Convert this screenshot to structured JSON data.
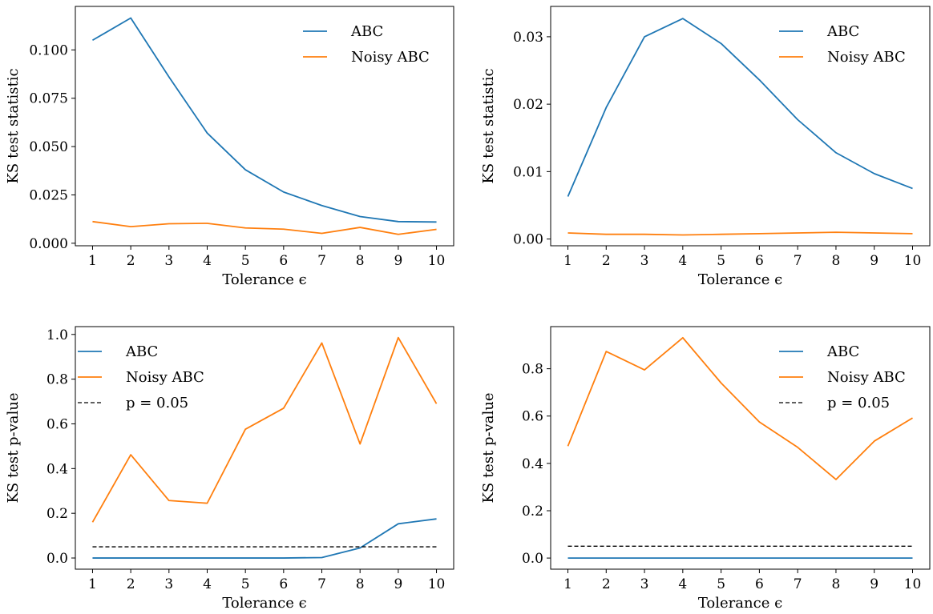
{
  "colors": {
    "ABC": "#1f77b4",
    "Noisy ABC": "#ff7f0e",
    "threshold": "#000000"
  },
  "chart_data": [
    {
      "type": "line",
      "panel": "top-left",
      "xlabel": "Tolerance ϵ",
      "ylabel": "KS test statistic",
      "x": [
        1,
        2,
        3,
        4,
        5,
        6,
        7,
        8,
        9,
        10
      ],
      "xticks": [
        "1",
        "2",
        "3",
        "4",
        "5",
        "6",
        "7",
        "8",
        "9",
        "10"
      ],
      "xlim": [
        0.55,
        10.45
      ],
      "ylim": [
        -0.0013,
        0.1225
      ],
      "yticks": [
        "0.000",
        "0.025",
        "0.050",
        "0.075",
        "0.100"
      ],
      "ytick_values": [
        0,
        0.025,
        0.05,
        0.075,
        0.1
      ],
      "grid": false,
      "legend": "top-right",
      "series": [
        {
          "name": "ABC",
          "color_key": "ABC",
          "values": [
            0.105,
            0.1165,
            0.086,
            0.057,
            0.038,
            0.0265,
            0.0195,
            0.0138,
            0.0112,
            0.011
          ]
        },
        {
          "name": "Noisy ABC",
          "color_key": "Noisy ABC",
          "values": [
            0.0112,
            0.0086,
            0.0101,
            0.0103,
            0.0079,
            0.0073,
            0.0051,
            0.0082,
            0.0046,
            0.0072
          ]
        }
      ]
    },
    {
      "type": "line",
      "panel": "top-right",
      "xlabel": "Tolerance ϵ",
      "ylabel": "KS test statistic",
      "x": [
        1,
        2,
        3,
        4,
        5,
        6,
        7,
        8,
        9,
        10
      ],
      "xticks": [
        "1",
        "2",
        "3",
        "4",
        "5",
        "6",
        "7",
        "8",
        "9",
        "10"
      ],
      "xlim": [
        0.55,
        10.45
      ],
      "ylim": [
        -0.001,
        0.0345
      ],
      "yticks": [
        "0.00",
        "0.01",
        "0.02",
        "0.03"
      ],
      "ytick_values": [
        0,
        0.01,
        0.02,
        0.03
      ],
      "grid": false,
      "legend": "top-right",
      "series": [
        {
          "name": "ABC",
          "color_key": "ABC",
          "values": [
            0.0063,
            0.0195,
            0.03,
            0.0327,
            0.029,
            0.0236,
            0.0177,
            0.0128,
            0.0097,
            0.0075
          ]
        },
        {
          "name": "Noisy ABC",
          "color_key": "Noisy ABC",
          "values": [
            0.0009,
            0.0007,
            0.0007,
            0.0006,
            0.0007,
            0.0008,
            0.0009,
            0.001,
            0.0009,
            0.0008
          ]
        }
      ]
    },
    {
      "type": "line",
      "panel": "bottom-left",
      "xlabel": "Tolerance ϵ",
      "ylabel": "KS test p-value",
      "x": [
        1,
        2,
        3,
        4,
        5,
        6,
        7,
        8,
        9,
        10
      ],
      "xticks": [
        "1",
        "2",
        "3",
        "4",
        "5",
        "6",
        "7",
        "8",
        "9",
        "10"
      ],
      "xlim": [
        0.55,
        10.45
      ],
      "ylim": [
        -0.05,
        1.035
      ],
      "yticks": [
        "0.0",
        "0.2",
        "0.4",
        "0.6",
        "0.8",
        "1.0"
      ],
      "ytick_values": [
        0,
        0.2,
        0.4,
        0.6,
        0.8,
        1.0
      ],
      "grid": false,
      "legend": "top-left",
      "series": [
        {
          "name": "ABC",
          "color_key": "ABC",
          "values": [
            0.0,
            0.0,
            0.0,
            0.0,
            0.0,
            0.0,
            0.002,
            0.045,
            0.153,
            0.175
          ]
        },
        {
          "name": "Noisy ABC",
          "color_key": "Noisy ABC",
          "values": [
            0.16,
            0.462,
            0.257,
            0.245,
            0.576,
            0.67,
            0.962,
            0.51,
            0.986,
            0.69
          ]
        },
        {
          "name": "p = 0.05",
          "color_key": "threshold",
          "dashed": true,
          "values": [
            0.05,
            0.05,
            0.05,
            0.05,
            0.05,
            0.05,
            0.05,
            0.05,
            0.05,
            0.05
          ]
        }
      ]
    },
    {
      "type": "line",
      "panel": "bottom-right",
      "xlabel": "Tolerance ϵ",
      "ylabel": "KS test p-value",
      "x": [
        1,
        2,
        3,
        4,
        5,
        6,
        7,
        8,
        9,
        10
      ],
      "xticks": [
        "1",
        "2",
        "3",
        "4",
        "5",
        "6",
        "7",
        "8",
        "9",
        "10"
      ],
      "xlim": [
        0.55,
        10.45
      ],
      "ylim": [
        -0.047,
        0.978
      ],
      "yticks": [
        "0.0",
        "0.2",
        "0.4",
        "0.6",
        "0.8"
      ],
      "ytick_values": [
        0,
        0.2,
        0.4,
        0.6,
        0.8
      ],
      "grid": false,
      "legend": "top-right",
      "series": [
        {
          "name": "ABC",
          "color_key": "ABC",
          "values": [
            0.0,
            0.0,
            0.0,
            0.0,
            0.0,
            0.0,
            0.0,
            0.0,
            0.0,
            0.0
          ]
        },
        {
          "name": "Noisy ABC",
          "color_key": "Noisy ABC",
          "values": [
            0.473,
            0.873,
            0.795,
            0.931,
            0.74,
            0.575,
            0.468,
            0.332,
            0.494,
            0.592
          ]
        },
        {
          "name": "p = 0.05",
          "color_key": "threshold",
          "dashed": true,
          "values": [
            0.05,
            0.05,
            0.05,
            0.05,
            0.05,
            0.05,
            0.05,
            0.05,
            0.05,
            0.05
          ]
        }
      ]
    }
  ]
}
